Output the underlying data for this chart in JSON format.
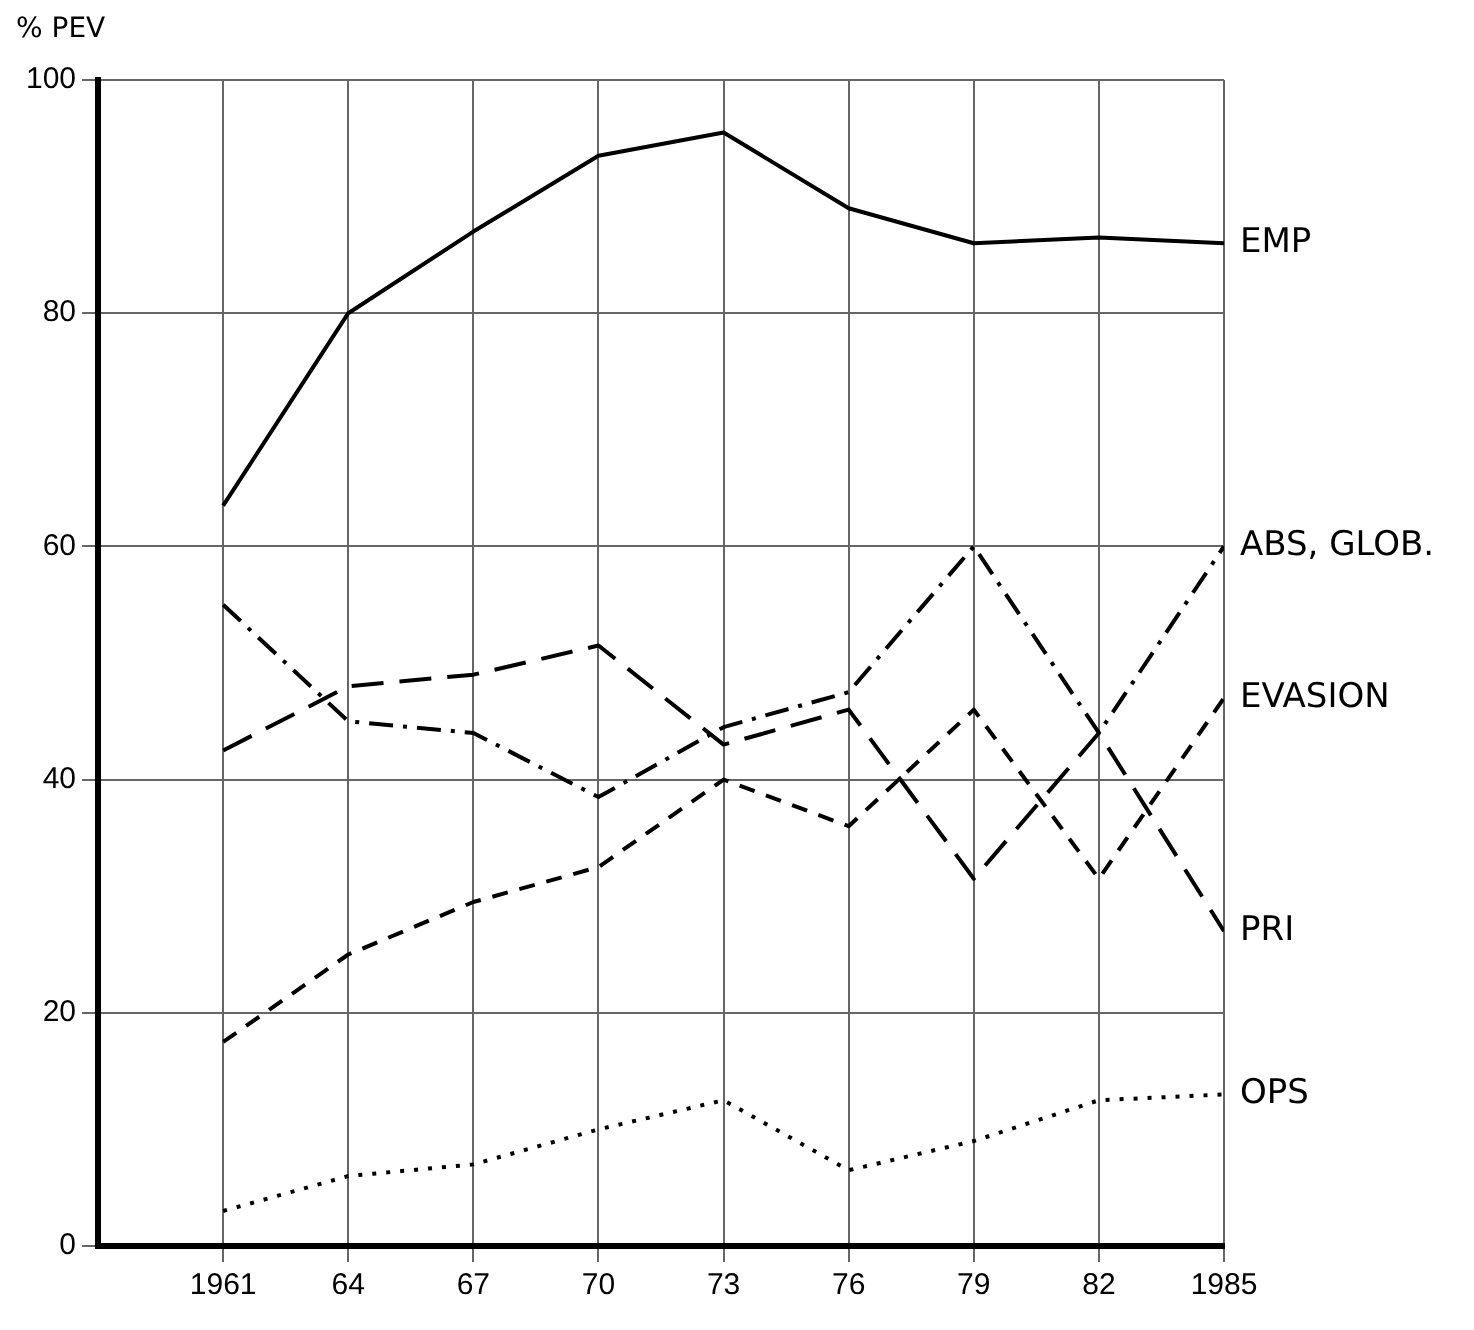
{
  "chart_data": {
    "type": "line",
    "ylabel": "% PEV",
    "x": [
      1961,
      1964,
      1967,
      1970,
      1973,
      1976,
      1979,
      1982,
      1985
    ],
    "series": [
      {
        "name": "EMP",
        "color": "#000000",
        "line_style": "solid",
        "values": [
          63.5,
          80,
          87,
          93.5,
          95.5,
          89,
          86,
          86.5,
          86
        ]
      },
      {
        "name": "ABS, GLOB.",
        "color": "#000000",
        "line_style": "dashdot",
        "values": [
          55,
          45,
          44,
          38.5,
          44.5,
          47.5,
          60,
          44,
          60
        ]
      },
      {
        "name": "EVASION",
        "color": "#000000",
        "line_style": "dashed",
        "values": [
          17.5,
          25,
          29.5,
          32.5,
          40,
          36,
          46,
          31.5,
          47
        ]
      },
      {
        "name": "PRI",
        "color": "#000000",
        "line_style": "longdash",
        "values": [
          42.5,
          48,
          49,
          51.5,
          43,
          46,
          31.5,
          44,
          27
        ]
      },
      {
        "name": "OPS",
        "color": "#000000",
        "line_style": "dotted",
        "values": [
          3,
          6,
          7,
          10,
          12.5,
          6.5,
          9,
          12.5,
          13
        ]
      }
    ],
    "xlim": [
      1958,
      1985
    ],
    "xticks": [
      {
        "value": 1961,
        "label": "1961"
      },
      {
        "value": 1964,
        "label": "64"
      },
      {
        "value": 1967,
        "label": "67"
      },
      {
        "value": 1970,
        "label": "70"
      },
      {
        "value": 1973,
        "label": "73"
      },
      {
        "value": 1976,
        "label": "76"
      },
      {
        "value": 1979,
        "label": "79"
      },
      {
        "value": 1982,
        "label": "82"
      },
      {
        "value": 1985,
        "label": "1985"
      }
    ],
    "ylim": [
      0,
      100
    ],
    "yticks": [
      0,
      20,
      40,
      60,
      80,
      100
    ],
    "grid": true,
    "legend": false,
    "marker": "none"
  }
}
